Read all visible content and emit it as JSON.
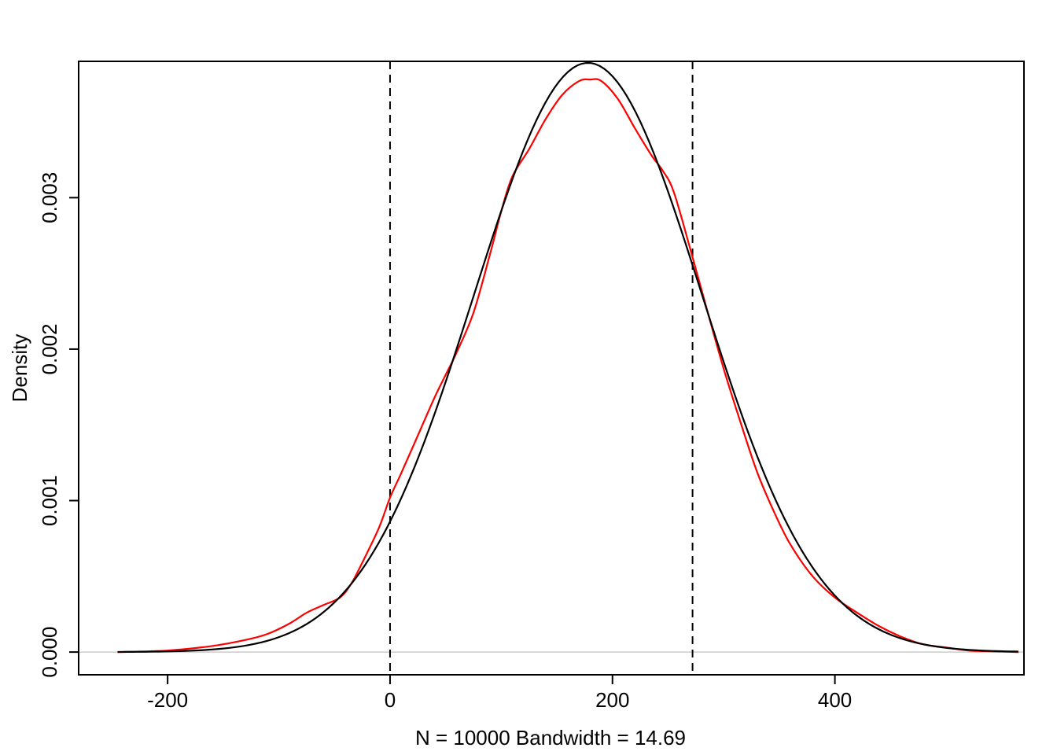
{
  "chart_data": {
    "type": "line",
    "title": "",
    "xlabel": "N = 10000   Bandwidth = 14.69",
    "ylabel": "Density",
    "xlim": [
      -280,
      570
    ],
    "ylim": [
      -0.00015,
      0.0039
    ],
    "x_ticks": [
      -200,
      0,
      200,
      400
    ],
    "x_tick_labels": [
      "-200",
      "0",
      "200",
      "400"
    ],
    "y_ticks": [
      0,
      0.001,
      0.002,
      0.003
    ],
    "y_tick_labels": [
      "0.000",
      "0.001",
      "0.002",
      "0.003"
    ],
    "grid": false,
    "legend": "none",
    "zero_line": {
      "y": 0,
      "color": "#cccccc"
    },
    "vertical_reference_lines": [
      {
        "x": 0,
        "style": "dashed",
        "color": "#000000"
      },
      {
        "x": 272,
        "style": "dashed",
        "color": "#000000"
      }
    ],
    "series": [
      {
        "color": "#ff0000",
        "x": [
          -245,
          -200,
          -160,
          -130,
          -110,
          -90,
          -75,
          -60,
          -45,
          -35,
          -25,
          -10,
          0,
          10,
          25,
          40,
          50,
          60,
          75,
          90,
          100,
          110,
          125,
          140,
          155,
          170,
          180,
          190,
          205,
          220,
          235,
          245,
          255,
          270,
          285,
          300,
          315,
          330,
          345,
          360,
          380,
          400,
          420,
          440,
          460,
          480,
          500,
          520,
          540,
          565
        ],
        "y": [
          0,
          1e-05,
          4e-05,
          8e-05,
          0.00012,
          0.00019,
          0.00026,
          0.00031,
          0.00036,
          0.00045,
          0.00059,
          0.00082,
          0.00102,
          0.00118,
          0.00143,
          0.00168,
          0.00183,
          0.00198,
          0.00224,
          0.00263,
          0.00291,
          0.00314,
          0.00332,
          0.00352,
          0.00368,
          0.00377,
          0.00378,
          0.00377,
          0.00365,
          0.00346,
          0.00328,
          0.00318,
          0.00304,
          0.00266,
          0.00226,
          0.00187,
          0.00152,
          0.00119,
          0.00093,
          0.00071,
          0.0005,
          0.00036,
          0.00026,
          0.00017,
          0.0001,
          5e-05,
          3e-05,
          1e-05,
          5e-06,
          0
        ]
      },
      {
        "color": "#000000",
        "mean": 178,
        "sd": 102.5,
        "x_range": [
          -245,
          565
        ],
        "peak": 0.00389
      }
    ]
  }
}
